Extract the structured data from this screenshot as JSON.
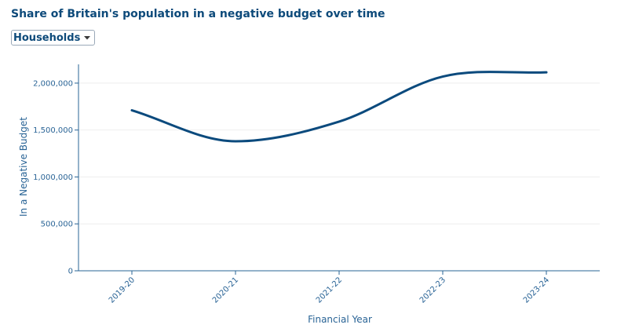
{
  "colors": {
    "title": "#0d4a7a",
    "line": "#0b4a7d",
    "axis": "#2a6496",
    "grid": "#eeeeee"
  },
  "dropdown": {
    "selected": "Households",
    "caret_icon": "caret-down-icon"
  },
  "chart_data": {
    "type": "line",
    "title": "Share of Britain's population in a negative budget over time",
    "xlabel": "Financial Year",
    "ylabel": "In a Negative Budget",
    "categories": [
      "2019-20",
      "2020-21",
      "2021-22",
      "2022-23",
      "2023-24"
    ],
    "series": [
      {
        "values": [
          1710000,
          1380000,
          1590000,
          2070000,
          2115000
        ]
      }
    ],
    "ylim": [
      0,
      2200000
    ],
    "yticks": [
      0,
      500000,
      1000000,
      1500000,
      2000000
    ],
    "ytick_labels": [
      "0",
      "500,000",
      "1,000,000",
      "1,500,000",
      "2,000,000"
    ],
    "grid": true,
    "smooth": true
  }
}
